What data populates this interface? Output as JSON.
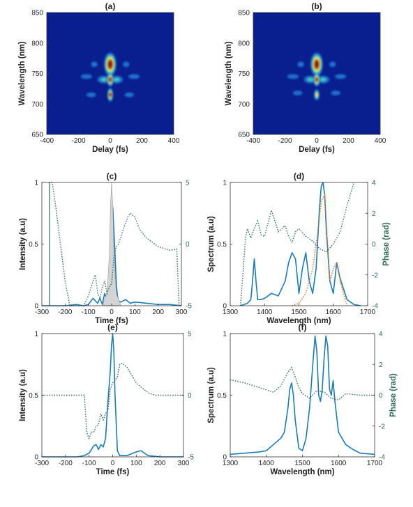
{
  "chart_data": [
    {
      "id": "a",
      "type": "heatmap",
      "title": "(a)",
      "xlabel": "Delay (fs)",
      "ylabel": "Wavelength (nm)",
      "xlim": [
        -400,
        400
      ],
      "ylim": [
        650,
        850
      ],
      "xticks": [
        "-400",
        "-200",
        "0",
        "200",
        "400"
      ],
      "yticks": [
        "650",
        "700",
        "750",
        "800",
        "850"
      ],
      "colormap": [
        "#0a1f8f",
        "#1f6fd1",
        "#3fc8c8",
        "#e8e84a",
        "#e06a1e",
        "#8b1a10"
      ],
      "lobes": [
        {
          "delay": 0,
          "wavelength": 765,
          "dw": 45,
          "dl": 20,
          "level": 1.0
        },
        {
          "delay": 0,
          "wavelength": 740,
          "dw": 25,
          "dl": 12,
          "level": 0.95
        },
        {
          "delay": 0,
          "wavelength": 715,
          "dw": 22,
          "dl": 12,
          "level": 0.9
        },
        {
          "delay": -40,
          "wavelength": 740,
          "dw": 55,
          "dl": 8,
          "level": 0.45
        },
        {
          "delay": 40,
          "wavelength": 740,
          "dw": 55,
          "dl": 8,
          "level": 0.45
        },
        {
          "delay": -150,
          "wavelength": 745,
          "dw": 60,
          "dl": 6,
          "level": 0.3
        },
        {
          "delay": 150,
          "wavelength": 745,
          "dw": 60,
          "dl": 6,
          "level": 0.3
        },
        {
          "delay": -120,
          "wavelength": 715,
          "dw": 50,
          "dl": 6,
          "level": 0.3
        },
        {
          "delay": 120,
          "wavelength": 715,
          "dw": 50,
          "dl": 6,
          "level": 0.3
        },
        {
          "delay": -100,
          "wavelength": 765,
          "dw": 40,
          "dl": 8,
          "level": 0.25
        },
        {
          "delay": 100,
          "wavelength": 765,
          "dw": 40,
          "dl": 8,
          "level": 0.25
        }
      ]
    },
    {
      "id": "b",
      "type": "heatmap",
      "title": "(b)",
      "xlabel": "Delay (fs)",
      "ylabel": "Wavelength (nm)",
      "xlim": [
        -400,
        400
      ],
      "ylim": [
        650,
        850
      ],
      "xticks": [
        "-400",
        "-200",
        "0",
        "200",
        "400"
      ],
      "yticks": [
        "650",
        "700",
        "750",
        "800",
        "850"
      ],
      "colormap": [
        "#0a1f8f",
        "#1f6fd1",
        "#3fc8c8",
        "#e8e84a",
        "#e06a1e",
        "#8b1a10"
      ],
      "lobes": [
        {
          "delay": 0,
          "wavelength": 765,
          "dw": 45,
          "dl": 20,
          "level": 1.0
        },
        {
          "delay": 0,
          "wavelength": 740,
          "dw": 25,
          "dl": 12,
          "level": 0.9
        },
        {
          "delay": 0,
          "wavelength": 715,
          "dw": 22,
          "dl": 10,
          "level": 0.7
        },
        {
          "delay": -40,
          "wavelength": 740,
          "dw": 55,
          "dl": 8,
          "level": 0.45
        },
        {
          "delay": 40,
          "wavelength": 740,
          "dw": 55,
          "dl": 8,
          "level": 0.45
        },
        {
          "delay": -150,
          "wavelength": 745,
          "dw": 60,
          "dl": 6,
          "level": 0.3
        },
        {
          "delay": 150,
          "wavelength": 745,
          "dw": 60,
          "dl": 6,
          "level": 0.3
        },
        {
          "delay": -120,
          "wavelength": 718,
          "dw": 50,
          "dl": 6,
          "level": 0.3
        },
        {
          "delay": 120,
          "wavelength": 718,
          "dw": 50,
          "dl": 6,
          "level": 0.3
        },
        {
          "delay": -100,
          "wavelength": 765,
          "dw": 40,
          "dl": 8,
          "level": 0.25
        },
        {
          "delay": 100,
          "wavelength": 765,
          "dw": 40,
          "dl": 8,
          "level": 0.25
        }
      ]
    },
    {
      "id": "c",
      "type": "line",
      "title": "(c)",
      "xlabel": "Time (fs)",
      "ylabel": "Intensity (a.u)",
      "ylabel2": "",
      "xlim": [
        -300,
        300
      ],
      "ylim": [
        0,
        1
      ],
      "y2lim": [
        -5,
        5
      ],
      "xticks": [
        "-300",
        "-200",
        "-100",
        "0",
        "100",
        "200",
        "300"
      ],
      "yticks": [
        "0",
        "0.5",
        "1"
      ],
      "y2ticks": [
        "-5",
        "0",
        "5"
      ],
      "colors": {
        "intensity": "#1a7bb9",
        "phase": "#2f6b55",
        "reference": "#c8c8c8"
      },
      "series": [
        {
          "role": "intensity",
          "style": "solid",
          "x": [
            -300,
            -270,
            -250,
            -200,
            -150,
            -120,
            -100,
            -80,
            -60,
            -50,
            -40,
            -30,
            -20,
            -15,
            -10,
            -5,
            0,
            5,
            10,
            15,
            20,
            25,
            30,
            40,
            60,
            80,
            100,
            150,
            200,
            250,
            300
          ],
          "y": [
            0.0,
            0.0,
            0.0,
            0.0,
            0.01,
            0.0,
            0.01,
            0.06,
            0.02,
            0.06,
            0.01,
            0.1,
            0.05,
            0.13,
            0.22,
            0.45,
            0.72,
            0.8,
            0.6,
            0.4,
            0.18,
            0.08,
            0.04,
            0.03,
            0.05,
            0.02,
            0.03,
            0.02,
            0.01,
            0.01,
            0.0
          ]
        },
        {
          "role": "reference",
          "style": "filled",
          "x": [
            -40,
            -20,
            -10,
            -5,
            0,
            5,
            10,
            20,
            40
          ],
          "y": [
            0.0,
            0.1,
            0.4,
            0.8,
            1.0,
            0.8,
            0.4,
            0.1,
            0.0
          ]
        },
        {
          "role": "phase",
          "style": "dotted",
          "axis": "right",
          "x": [
            -270,
            -255,
            -240,
            -220,
            -200,
            -180,
            -150,
            -120,
            -100,
            -80,
            -70,
            -60,
            -50,
            -40,
            -30,
            -20,
            -10,
            0,
            10,
            20,
            30,
            50,
            70,
            80,
            100,
            120,
            150,
            200,
            250,
            280,
            290
          ],
          "y": [
            5,
            5,
            3,
            0,
            -3,
            -5,
            -5,
            -5,
            -4.2,
            -3,
            -2.5,
            -4,
            -4.4,
            -3.5,
            -3,
            -4,
            -3.5,
            -3.2,
            -1,
            -0.2,
            0,
            1.2,
            2.2,
            2.5,
            2.2,
            1.2,
            0.5,
            -0.2,
            -0.5,
            -0.4,
            -5
          ]
        },
        {
          "role": "marker",
          "style": "solid",
          "axis": "right",
          "x": [
            -267,
            -267
          ],
          "y": [
            -5,
            5
          ]
        }
      ]
    },
    {
      "id": "d",
      "type": "line",
      "title": "(d)",
      "xlabel": "Wavelength (nm)",
      "ylabel": "Spectrum (a.u)",
      "ylabel2": "Phase (rad)",
      "xlim": [
        1300,
        1700
      ],
      "ylim": [
        0,
        1
      ],
      "y2lim": [
        -4,
        4
      ],
      "xticks": [
        "1300",
        "1400",
        "1500",
        "1600",
        "1700"
      ],
      "yticks": [
        "0",
        "0.5",
        "1"
      ],
      "y2ticks": [
        "-4",
        "-2",
        "0",
        "2",
        "4"
      ],
      "colors": {
        "intensity": "#1a7bb9",
        "phase": "#2f6b55",
        "reference": "#e07a3a"
      },
      "series": [
        {
          "role": "intensity",
          "style": "solid",
          "x": [
            1330,
            1350,
            1360,
            1365,
            1370,
            1375,
            1380,
            1390,
            1400,
            1420,
            1440,
            1460,
            1470,
            1480,
            1490,
            1500,
            1510,
            1520,
            1530,
            1540,
            1550,
            1560,
            1565,
            1570,
            1575,
            1580,
            1590,
            1600,
            1610,
            1620,
            1640,
            1660,
            1680
          ],
          "y": [
            0.0,
            0.02,
            0.05,
            0.2,
            0.38,
            0.2,
            0.05,
            0.05,
            0.06,
            0.1,
            0.08,
            0.2,
            0.35,
            0.43,
            0.38,
            0.1,
            0.3,
            0.43,
            0.2,
            0.1,
            0.3,
            0.8,
            0.97,
            1.0,
            0.9,
            0.6,
            0.2,
            0.1,
            0.35,
            0.22,
            0.05,
            0.01,
            0.0
          ]
        },
        {
          "role": "reference",
          "style": "dotted",
          "x": [
            1480,
            1500,
            1520,
            1540,
            1555,
            1565,
            1575,
            1590,
            1600,
            1610,
            1620,
            1640
          ],
          "y": [
            0.0,
            0.02,
            0.1,
            0.3,
            0.6,
            0.85,
            0.9,
            0.2,
            0.3,
            0.35,
            0.2,
            0.0
          ]
        },
        {
          "role": "phase",
          "style": "dotted",
          "axis": "right",
          "x": [
            1330,
            1340,
            1345,
            1350,
            1360,
            1370,
            1380,
            1390,
            1400,
            1420,
            1440,
            1460,
            1470,
            1480,
            1490,
            1500,
            1520,
            1540,
            1560,
            1580,
            1600,
            1620,
            1640,
            1660
          ],
          "y": [
            -4,
            -1,
            0.5,
            1.0,
            0.4,
            1.0,
            1.5,
            0.6,
            0.5,
            2.2,
            0.8,
            1.2,
            0.5,
            0.1,
            0.8,
            1.0,
            0.5,
            0.2,
            -0.3,
            -0.5,
            0,
            0.8,
            2.5,
            4
          ]
        }
      ]
    },
    {
      "id": "e",
      "type": "line",
      "title": "(e)",
      "xlabel": "Time (fs)",
      "ylabel": "Intensity (a.u)",
      "ylabel2": "",
      "xlim": [
        -300,
        300
      ],
      "ylim": [
        0,
        1
      ],
      "y2lim": [
        -5,
        5
      ],
      "xticks": [
        "-300",
        "-200",
        "-100",
        "0",
        "100",
        "200",
        "300"
      ],
      "yticks": [
        "0",
        "0.5",
        "1"
      ],
      "y2ticks": [
        "-5",
        "0",
        "5"
      ],
      "colors": {
        "intensity": "#1a7bb9",
        "phase": "#2f6b55"
      },
      "series": [
        {
          "role": "intensity",
          "style": "solid",
          "x": [
            -300,
            -150,
            -120,
            -100,
            -80,
            -70,
            -60,
            -50,
            -40,
            -30,
            -20,
            -10,
            -5,
            0,
            5,
            10,
            20,
            30,
            60,
            100,
            120,
            150,
            200,
            300
          ],
          "y": [
            0,
            0,
            0.01,
            0.03,
            0.09,
            0.1,
            0.06,
            0.1,
            0.08,
            0.15,
            0.45,
            0.7,
            0.9,
            1.0,
            0.85,
            0.5,
            0.05,
            0.01,
            0.01,
            0.04,
            0.05,
            0.01,
            0.0,
            0.0
          ]
        },
        {
          "role": "phase",
          "style": "dotted",
          "axis": "right",
          "x": [
            -300,
            -120,
            -110,
            -100,
            -90,
            -80,
            -70,
            -60,
            -50,
            -40,
            -30,
            -20,
            -10,
            0,
            10,
            20,
            30,
            40,
            60,
            100,
            150,
            180,
            200,
            300
          ],
          "y": [
            0,
            0,
            -3,
            -3.5,
            -3,
            -3,
            -2.5,
            -2.4,
            -1.5,
            -2,
            -1.5,
            -1.2,
            0.5,
            1.0,
            1.2,
            1.5,
            2.5,
            2.6,
            2.3,
            1.0,
            0.2,
            0,
            0,
            0
          ]
        }
      ]
    },
    {
      "id": "f",
      "type": "line",
      "title": "(f)",
      "xlabel": "Wavelength (nm)",
      "ylabel": "Spectrum (a.u)",
      "ylabel2": "Phase (rad)",
      "xlim": [
        1300,
        1700
      ],
      "ylim": [
        0,
        1
      ],
      "y2lim": [
        -4,
        4
      ],
      "xticks": [
        "1300",
        "1400",
        "1500",
        "1600",
        "1700"
      ],
      "yticks": [
        "0",
        "0.5",
        "1"
      ],
      "y2ticks": [
        "-4",
        "-2",
        "0",
        "2",
        "4"
      ],
      "colors": {
        "intensity": "#1a7bb9",
        "phase": "#2f6b55"
      },
      "series": [
        {
          "role": "intensity",
          "style": "solid",
          "x": [
            1300,
            1380,
            1400,
            1420,
            1440,
            1450,
            1460,
            1465,
            1470,
            1475,
            1480,
            1490,
            1500,
            1510,
            1520,
            1530,
            1535,
            1540,
            1545,
            1550,
            1555,
            1560,
            1565,
            1570,
            1575,
            1580,
            1585,
            1590,
            1600,
            1620,
            1640,
            1660,
            1700
          ],
          "y": [
            0.02,
            0.04,
            0.05,
            0.1,
            0.15,
            0.2,
            0.4,
            0.55,
            0.6,
            0.5,
            0.3,
            0.07,
            0.05,
            0.15,
            0.4,
            0.8,
            0.98,
            0.85,
            0.5,
            0.45,
            0.55,
            0.8,
            0.98,
            0.9,
            0.55,
            0.5,
            0.62,
            0.45,
            0.2,
            0.1,
            0.06,
            0.03,
            0.02
          ]
        },
        {
          "role": "phase",
          "style": "dotted",
          "axis": "right",
          "x": [
            1300,
            1340,
            1380,
            1420,
            1440,
            1460,
            1470,
            1480,
            1490,
            1500,
            1520,
            1540,
            1560,
            1580,
            1600,
            1620,
            1660,
            1700
          ],
          "y": [
            1.0,
            0.8,
            0.5,
            0.2,
            0.6,
            1.5,
            1.8,
            1.2,
            0.5,
            0.1,
            -0.2,
            0.3,
            0.2,
            -0.2,
            -0.3,
            0.1,
            0,
            0
          ]
        }
      ]
    }
  ]
}
